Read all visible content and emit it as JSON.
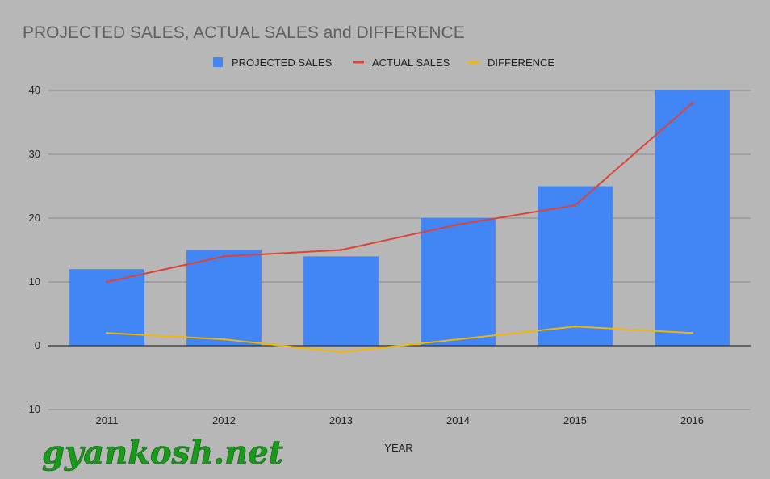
{
  "watermark": "gyankosh.net",
  "chart_data": {
    "type": "bar",
    "title": "PROJECTED SALES, ACTUAL SALES and DIFFERENCE",
    "xlabel": "YEAR",
    "ylabel": "",
    "categories": [
      "2011",
      "2012",
      "2013",
      "2014",
      "2015",
      "2016"
    ],
    "ylim": [
      -10,
      40
    ],
    "yticks": [
      "-10",
      "0",
      "10",
      "20",
      "30",
      "40"
    ],
    "grid": true,
    "legend_position": "top",
    "series": [
      {
        "name": "PROJECTED SALES",
        "type": "bar",
        "color": "#4285f4",
        "values": [
          12,
          15,
          14,
          20,
          25,
          40
        ]
      },
      {
        "name": "ACTUAL SALES",
        "type": "line",
        "color": "#db4437",
        "values": [
          10,
          14,
          15,
          19,
          22,
          38
        ]
      },
      {
        "name": "DIFFERENCE",
        "type": "line",
        "color": "#f4b400",
        "values": [
          2,
          1,
          -1,
          1,
          3,
          2
        ]
      }
    ]
  }
}
